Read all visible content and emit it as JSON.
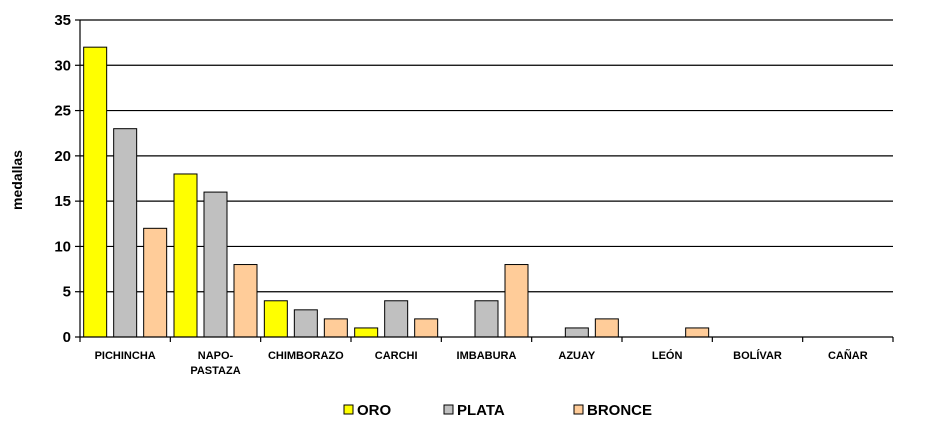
{
  "chart_data": {
    "type": "bar",
    "ylabel": "medallas",
    "ylim": [
      0,
      35
    ],
    "yticks": [
      0,
      5,
      10,
      15,
      20,
      25,
      30,
      35
    ],
    "grid": true,
    "legend_position": "bottom",
    "categories": [
      "PICHINCHA",
      "NAPO-\nPASTAZA",
      "CHIMBORAZO",
      "CARCHI",
      "IMBABURA",
      "AZUAY",
      "LEÓN",
      "BOLÍVAR",
      "CAÑAR"
    ],
    "series": [
      {
        "name": "ORO",
        "color": "#FFFF00",
        "values": [
          32,
          18,
          4,
          1,
          0,
          0,
          0,
          0,
          0
        ]
      },
      {
        "name": "PLATA",
        "color": "#C0C0C0",
        "values": [
          23,
          16,
          3,
          4,
          4,
          1,
          0,
          0,
          0
        ]
      },
      {
        "name": "BRONCE",
        "color": "#FFCC99",
        "values": [
          12,
          8,
          2,
          2,
          8,
          2,
          1,
          0,
          0
        ]
      }
    ]
  }
}
